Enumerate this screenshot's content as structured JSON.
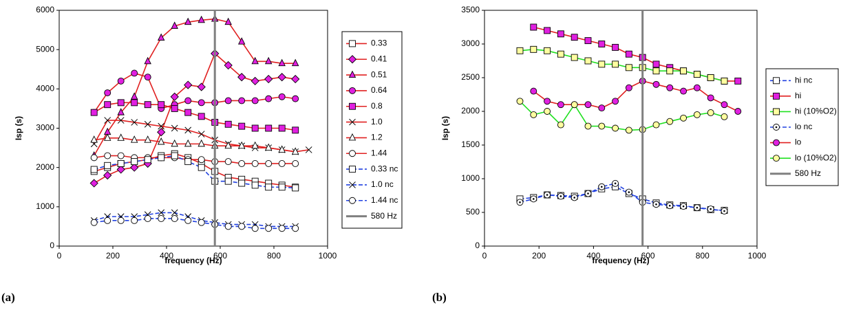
{
  "charts": [
    {
      "chart_data": {
        "type": "line",
        "panel_label": "(a)",
        "x_label": "frequency (Hz)",
        "y_label": "Isp (s)",
        "xlim": [
          0,
          1000
        ],
        "xticks": [
          0,
          200,
          400,
          600,
          800,
          1000
        ],
        "ylim": [
          0,
          6000
        ],
        "yticks": [
          0,
          1000,
          2000,
          3000,
          4000,
          5000,
          6000
        ],
        "x": [
          130,
          180,
          230,
          280,
          330,
          380,
          430,
          480,
          530,
          580,
          630,
          680,
          730,
          780,
          830,
          880,
          930
        ],
        "series": [
          {
            "name": "0.33",
            "color": "#e02020",
            "marker": "square",
            "marker_fill": "#ffffff",
            "dashed": false,
            "values": [
              1900,
              2000,
              2100,
              2150,
              2200,
              2300,
              2350,
              2250,
              2100,
              1900,
              1750,
              1700,
              1650,
              1600,
              1550,
              1500,
              null
            ]
          },
          {
            "name": "0.41",
            "color": "#e02020",
            "marker": "diamond",
            "marker_fill": "#e020e0",
            "dashed": false,
            "values": [
              1600,
              1800,
              1950,
              2000,
              2100,
              2900,
              3800,
              4100,
              4050,
              4900,
              4600,
              4300,
              4200,
              4250,
              4300,
              4250,
              null
            ]
          },
          {
            "name": "0.51",
            "color": "#e02020",
            "marker": "triangle",
            "marker_fill": "#e020e0",
            "dashed": false,
            "values": [
              2300,
              2900,
              3400,
              3800,
              4700,
              5300,
              5600,
              5700,
              5750,
              5780,
              5700,
              5200,
              4700,
              4700,
              4650,
              4650,
              null
            ]
          },
          {
            "name": "0.64",
            "color": "#e02020",
            "marker": "circle",
            "marker_fill": "#e020e0",
            "dashed": false,
            "values": [
              3400,
              3900,
              4200,
              4400,
              4300,
              3500,
              3600,
              3700,
              3650,
              3650,
              3700,
              3700,
              3700,
              3750,
              3800,
              3750,
              null
            ]
          },
          {
            "name": "0.8",
            "color": "#e02020",
            "marker": "square",
            "marker_fill": "#e020e0",
            "dashed": false,
            "values": [
              3400,
              3600,
              3650,
              3650,
              3600,
              3600,
              3500,
              3400,
              3300,
              3150,
              3100,
              3050,
              3000,
              3000,
              3000,
              2950,
              null
            ]
          },
          {
            "name": "1.0",
            "color": "#e02020",
            "marker": "x",
            "marker_fill": "#000000",
            "dashed": false,
            "values": [
              2600,
              3200,
              3200,
              3150,
              3100,
              3050,
              3000,
              2950,
              2850,
              2700,
              2600,
              2550,
              2500,
              2500,
              2450,
              2400,
              2450
            ]
          },
          {
            "name": "1.2",
            "color": "#e02020",
            "marker": "triangle",
            "marker_fill": "#ffffff",
            "dashed": false,
            "values": [
              2700,
              2750,
              2750,
              2700,
              2700,
              2650,
              2600,
              2600,
              2600,
              2550,
              2550,
              2550,
              2550,
              2500,
              2450,
              2400,
              null
            ]
          },
          {
            "name": "1.44",
            "color": "#e02020",
            "marker": "circle",
            "marker_fill": "#ffffff",
            "dashed": false,
            "values": [
              2250,
              2300,
              2300,
              2250,
              2250,
              2250,
              2250,
              2200,
              2200,
              2150,
              2150,
              2100,
              2100,
              2100,
              2100,
              2100,
              null
            ]
          },
          {
            "name": "0.33 nc",
            "color": "#2040e0",
            "marker": "square",
            "marker_fill": "#ffffff",
            "dashed": true,
            "values": [
              1950,
              2050,
              2100,
              2150,
              2200,
              2250,
              2300,
              2150,
              2000,
              1650,
              1650,
              1600,
              1550,
              1500,
              1500,
              1480,
              null
            ]
          },
          {
            "name": "1.0 nc",
            "color": "#2040e0",
            "marker": "x",
            "marker_fill": "#000000",
            "dashed": true,
            "values": [
              650,
              750,
              750,
              750,
              800,
              850,
              850,
              750,
              650,
              600,
              550,
              550,
              550,
              500,
              500,
              500,
              null
            ]
          },
          {
            "name": "1.44 nc",
            "color": "#2040e0",
            "marker": "circle",
            "marker_fill": "#ffffff",
            "dashed": true,
            "values": [
              600,
              650,
              650,
              650,
              700,
              700,
              700,
              650,
              600,
              550,
              500,
              500,
              450,
              450,
              450,
              450,
              null
            ]
          },
          {
            "name": "580 Hz",
            "color": "#808080",
            "marker": "none",
            "marker_fill": "#808080",
            "dashed": false,
            "x": [
              580,
              580
            ],
            "values": [
              0,
              6000
            ]
          }
        ]
      }
    },
    {
      "chart_data": {
        "type": "line",
        "panel_label": "(b)",
        "x_label": "frequency (Hz)",
        "y_label": "Isp (s)",
        "xlim": [
          0,
          1000
        ],
        "xticks": [
          0,
          200,
          400,
          600,
          800,
          1000
        ],
        "ylim": [
          0,
          3500
        ],
        "yticks": [
          0,
          500,
          1000,
          1500,
          2000,
          2500,
          3000,
          3500
        ],
        "x": [
          130,
          180,
          230,
          280,
          330,
          380,
          430,
          480,
          530,
          580,
          630,
          680,
          730,
          780,
          830,
          880,
          930
        ],
        "series": [
          {
            "name": "hi nc",
            "color": "#2040e0",
            "marker": "square",
            "marker_fill": "#ffffff",
            "dashed": true,
            "values": [
              700,
              720,
              760,
              750,
              740,
              780,
              850,
              880,
              780,
              700,
              640,
              610,
              600,
              570,
              540,
              530,
              null
            ]
          },
          {
            "name": "hi",
            "color": "#e02020",
            "marker": "square",
            "marker_fill": "#e020e0",
            "dashed": false,
            "values": [
              null,
              3250,
              3200,
              3150,
              3100,
              3050,
              3000,
              2950,
              2850,
              2800,
              2700,
              2650,
              2600,
              2550,
              2500,
              2450,
              2450
            ]
          },
          {
            "name": "hi (10%O2)",
            "color": "#20e020",
            "marker": "square",
            "marker_fill": "#ffffa0",
            "dashed": false,
            "values": [
              2900,
              2920,
              2900,
              2850,
              2800,
              2750,
              2700,
              2700,
              2650,
              2650,
              2600,
              2600,
              2600,
              2550,
              2500,
              2450,
              null
            ]
          },
          {
            "name": "lo nc",
            "color": "#2040e0",
            "marker": "circle-dot",
            "marker_fill": "#ffffff",
            "dashed": true,
            "values": [
              650,
              700,
              760,
              740,
              720,
              780,
              880,
              930,
              800,
              650,
              620,
              600,
              590,
              570,
              550,
              520,
              null
            ]
          },
          {
            "name": "lo",
            "color": "#e02020",
            "marker": "circle",
            "marker_fill": "#e020e0",
            "dashed": false,
            "values": [
              null,
              2300,
              2150,
              2100,
              2100,
              2100,
              2050,
              2150,
              2350,
              2450,
              2400,
              2350,
              2300,
              2350,
              2200,
              2100,
              2000
            ]
          },
          {
            "name": "lo (10%O2)",
            "color": "#20e020",
            "marker": "circle",
            "marker_fill": "#ffffa0",
            "dashed": false,
            "values": [
              2150,
              1950,
              2000,
              1800,
              2100,
              1780,
              1780,
              1750,
              1720,
              1730,
              1800,
              1850,
              1900,
              1950,
              1980,
              1920,
              null
            ]
          },
          {
            "name": "580 Hz",
            "color": "#808080",
            "marker": "none",
            "marker_fill": "#808080",
            "dashed": false,
            "x": [
              580,
              580
            ],
            "values": [
              0,
              3500
            ]
          }
        ]
      }
    }
  ]
}
